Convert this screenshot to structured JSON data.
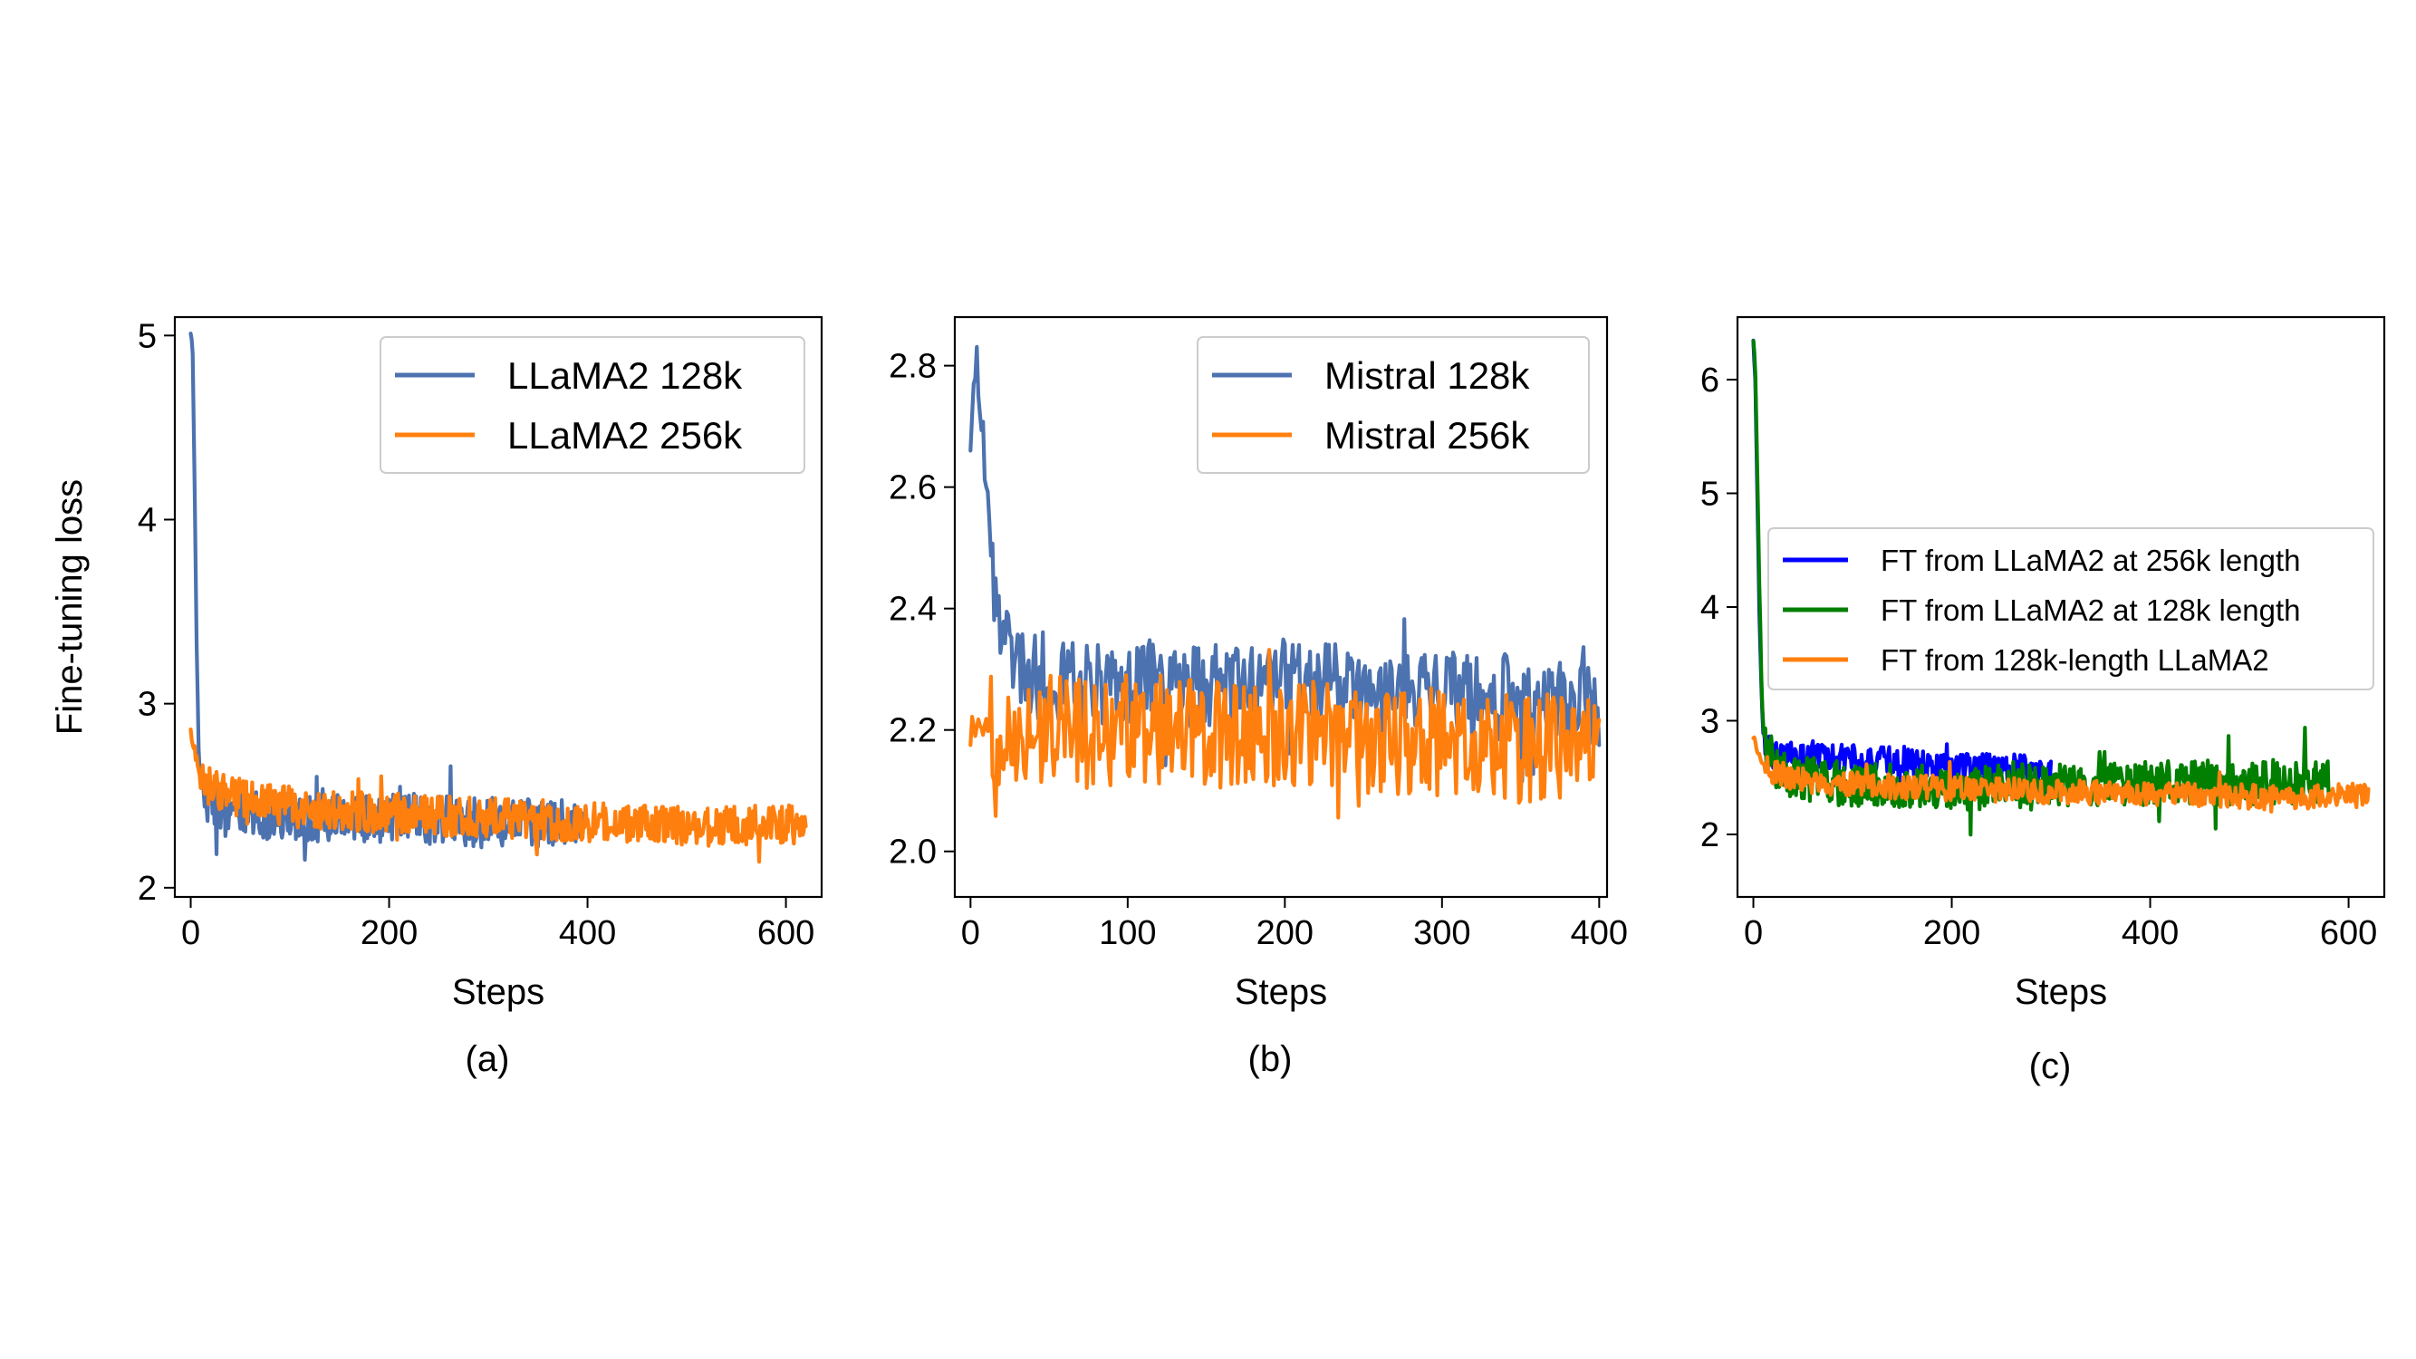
{
  "figure": {
    "ylabel": "Fine-tuning loss"
  },
  "chart_data": [
    {
      "type": "line",
      "caption": "(a)",
      "xlabel": "Steps",
      "ylabel": "Fine-tuning loss",
      "xlim": [
        -16,
        636
      ],
      "ylim": [
        1.95,
        5.1
      ],
      "xticks": [
        0,
        200,
        400,
        600
      ],
      "yticks": [
        2,
        3,
        4,
        5
      ],
      "legend_position": "upper right",
      "series": [
        {
          "name": "LLaMA2 128k",
          "color": "#4c72b0",
          "x": [
            0,
            2,
            4,
            6,
            8,
            10,
            14,
            20,
            30,
            40,
            60,
            80,
            100,
            120,
            140,
            160,
            180,
            200,
            220,
            240,
            260,
            280,
            300,
            320,
            340,
            360,
            380,
            400
          ],
          "y": [
            5.0,
            4.9,
            4.2,
            3.3,
            2.75,
            2.6,
            2.5,
            2.45,
            2.4,
            2.42,
            2.4,
            2.38,
            2.4,
            2.38,
            2.36,
            2.4,
            2.35,
            2.38,
            2.4,
            2.36,
            2.38,
            2.35,
            2.37,
            2.35,
            2.36,
            2.34,
            2.36,
            2.35
          ]
        },
        {
          "name": "LLaMA2 256k",
          "color": "#ff7f0e",
          "x": [
            0,
            5,
            10,
            20,
            40,
            60,
            80,
            100,
            140,
            180,
            220,
            260,
            300,
            340,
            380,
            420,
            460,
            500,
            540,
            580,
            620
          ],
          "y": [
            2.85,
            2.72,
            2.62,
            2.55,
            2.5,
            2.47,
            2.45,
            2.44,
            2.42,
            2.41,
            2.4,
            2.39,
            2.38,
            2.37,
            2.36,
            2.35,
            2.34,
            2.33,
            2.33,
            2.34,
            2.35
          ]
        }
      ]
    },
    {
      "type": "line",
      "caption": "(b)",
      "xlabel": "Steps",
      "ylabel": "",
      "xlim": [
        -10,
        405
      ],
      "ylim": [
        1.925,
        2.88
      ],
      "xticks": [
        0,
        100,
        200,
        300,
        400
      ],
      "yticks": [
        2.0,
        2.2,
        2.4,
        2.6,
        2.8
      ],
      "legend_position": "upper right",
      "series": [
        {
          "name": "Mistral 128k",
          "color": "#4c72b0",
          "x": [
            0,
            2,
            4,
            6,
            8,
            10,
            12,
            15,
            20,
            30,
            50,
            80,
            120,
            160,
            200,
            240,
            280,
            320,
            360,
            400
          ],
          "y": [
            2.68,
            2.75,
            2.82,
            2.72,
            2.7,
            2.62,
            2.58,
            2.45,
            2.38,
            2.3,
            2.28,
            2.27,
            2.28,
            2.27,
            2.28,
            2.27,
            2.26,
            2.26,
            2.25,
            2.24
          ]
        },
        {
          "name": "Mistral 256k",
          "color": "#ff7f0e",
          "x": [
            0,
            20,
            40,
            60,
            80,
            100,
            120,
            140,
            160,
            180,
            200,
            220,
            240,
            260,
            280,
            300,
            320,
            340,
            360,
            380,
            400
          ],
          "y": [
            2.2,
            2.2,
            2.2,
            2.2,
            2.19,
            2.19,
            2.2,
            2.2,
            2.19,
            2.19,
            2.19,
            2.19,
            2.18,
            2.18,
            2.18,
            2.18,
            2.18,
            2.17,
            2.17,
            2.17,
            2.17
          ]
        }
      ]
    },
    {
      "type": "line",
      "caption": "(c)",
      "xlabel": "Steps",
      "ylabel": "",
      "xlim": [
        -16,
        636
      ],
      "ylim": [
        1.45,
        6.55
      ],
      "xticks": [
        0,
        200,
        400,
        600
      ],
      "yticks": [
        2,
        3,
        4,
        5,
        6
      ],
      "legend_position": "center right",
      "series": [
        {
          "name": "FT from LLaMA2 at 256k length",
          "color": "#0000ff",
          "x": [
            0,
            2,
            4,
            6,
            8,
            10,
            14,
            20,
            40,
            60,
            80,
            100,
            120,
            140,
            160,
            180,
            200,
            220,
            240,
            260,
            280,
            300
          ],
          "y": [
            6.35,
            6.0,
            5.0,
            4.0,
            3.3,
            2.9,
            2.75,
            2.7,
            2.68,
            2.66,
            2.66,
            2.67,
            2.66,
            2.64,
            2.62,
            2.6,
            2.6,
            2.6,
            2.58,
            2.58,
            2.56,
            2.55
          ]
        },
        {
          "name": "FT from LLaMA2 at 128k length",
          "color": "#007f00",
          "x": [
            0,
            2,
            4,
            6,
            8,
            10,
            14,
            20,
            40,
            80,
            120,
            160,
            200,
            240,
            280,
            320,
            360,
            400,
            440,
            480,
            520,
            560,
            580
          ],
          "y": [
            6.35,
            6.1,
            5.2,
            4.2,
            3.4,
            2.9,
            2.65,
            2.55,
            2.5,
            2.45,
            2.43,
            2.42,
            2.4,
            2.42,
            2.43,
            2.44,
            2.45,
            2.45,
            2.46,
            2.46,
            2.46,
            2.47,
            2.47
          ]
        },
        {
          "name": "FT from 128k-length LLaMA2",
          "color": "#ff7f0e",
          "x": [
            0,
            5,
            10,
            20,
            40,
            60,
            80,
            100,
            140,
            180,
            220,
            260,
            300,
            340,
            380,
            420,
            460,
            500,
            540,
            580,
            620
          ],
          "y": [
            2.85,
            2.72,
            2.62,
            2.55,
            2.5,
            2.47,
            2.45,
            2.44,
            2.42,
            2.41,
            2.4,
            2.39,
            2.38,
            2.37,
            2.36,
            2.35,
            2.34,
            2.33,
            2.33,
            2.34,
            2.35
          ]
        }
      ]
    }
  ]
}
